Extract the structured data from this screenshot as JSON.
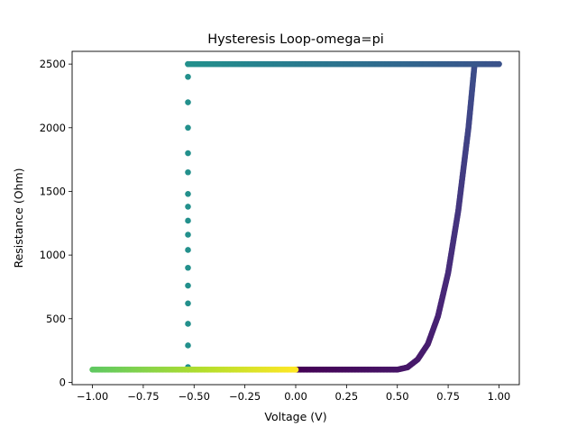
{
  "chart_data": {
    "type": "scatter",
    "title": "Hysteresis Loop-omega=pi",
    "xlabel": "Voltage (V)",
    "ylabel": "Resistance (Ohm)",
    "xlim": [
      -1.1,
      1.1
    ],
    "ylim": [
      -18,
      2600
    ],
    "xticks": [
      -1.0,
      -0.75,
      -0.5,
      -0.25,
      0.0,
      0.25,
      0.5,
      0.75,
      1.0
    ],
    "xtick_labels": [
      "−1.00",
      "−0.75",
      "−0.50",
      "−0.25",
      "0.00",
      "0.25",
      "0.50",
      "0.75",
      "1.00"
    ],
    "yticks": [
      0,
      500,
      1000,
      1500,
      2000,
      2500
    ],
    "ytick_labels": [
      "0",
      "500",
      "1000",
      "1500",
      "2000",
      "2500"
    ],
    "colormap": "viridis",
    "grid": false,
    "legend": "none",
    "R_on": 100,
    "R_off": 2500,
    "switch_voltage": -0.53,
    "series": [
      {
        "segment": "0 to 1 V (set branch)",
        "color_t": [
          0.0,
          0.25
        ],
        "points": [
          [
            0.0,
            100
          ],
          [
            0.5,
            100
          ],
          [
            0.55,
            118
          ],
          [
            0.6,
            180
          ],
          [
            0.65,
            300
          ],
          [
            0.7,
            520
          ],
          [
            0.75,
            860
          ],
          [
            0.8,
            1350
          ],
          [
            0.85,
            2000
          ],
          [
            0.88,
            2500
          ],
          [
            1.0,
            2500
          ]
        ]
      },
      {
        "segment": "1 to -0.53 V (high-resistance state)",
        "color_t": [
          0.25,
          0.5
        ],
        "points": [
          [
            1.0,
            2500
          ],
          [
            -0.53,
            2500
          ]
        ]
      },
      {
        "segment": "switch at -0.53 V",
        "color_t": [
          0.5,
          0.5
        ],
        "points": [
          [
            -0.53,
            2500
          ],
          [
            -0.53,
            2400
          ],
          [
            -0.53,
            2200
          ],
          [
            -0.53,
            2000
          ],
          [
            -0.53,
            1800
          ],
          [
            -0.53,
            1650
          ],
          [
            -0.53,
            1480
          ],
          [
            -0.53,
            1380
          ],
          [
            -0.53,
            1270
          ],
          [
            -0.53,
            1160
          ],
          [
            -0.53,
            1040
          ],
          [
            -0.53,
            900
          ],
          [
            -0.53,
            760
          ],
          [
            -0.53,
            620
          ],
          [
            -0.53,
            460
          ],
          [
            -0.53,
            290
          ],
          [
            -0.53,
            120
          ],
          [
            -0.53,
            100
          ]
        ]
      },
      {
        "segment": "-1 to 0 V (low-resistance state)",
        "color_t": [
          0.75,
          1.0
        ],
        "points": [
          [
            -1.0,
            100
          ],
          [
            0.0,
            100
          ]
        ]
      }
    ]
  }
}
